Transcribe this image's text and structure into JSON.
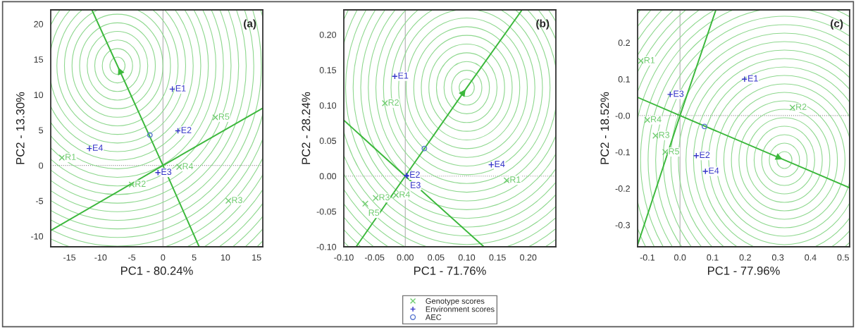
{
  "chart_data": [
    {
      "type": "scatter",
      "xlabel": "PC1 - 80.24%",
      "ylabel": "PC2 - 13.30%",
      "annotations": [
        "(a)"
      ],
      "xlim": [
        -18,
        16
      ],
      "ylim": [
        -11.5,
        22
      ],
      "xticks": [
        -15,
        -10,
        -5,
        0,
        5,
        10,
        15
      ],
      "yticks": [
        -10,
        -5,
        0,
        5,
        10,
        15,
        20
      ],
      "ref_lines": [
        {
          "axis": "x",
          "value": 0,
          "color": "#b0b0b0",
          "line_style": "solid"
        },
        {
          "axis": "y",
          "value": 0,
          "color": "#909090",
          "line_style": "dotted"
        }
      ],
      "series": [
        {
          "color": "#70cc70",
          "marker": "x",
          "x": [
            -16.2,
            -5,
            10.5,
            2.6,
            8.4
          ],
          "values": [
            1.1,
            -2.7,
            -5,
            -0.2,
            6.8
          ],
          "value_labels": [
            "R1",
            "R2",
            "R3",
            "R4",
            "R5"
          ]
        },
        {
          "color": "#3535c8",
          "marker": "cross",
          "x": [
            1.5,
            2.4,
            -0.8,
            -11.8
          ],
          "values": [
            10.8,
            4.9,
            -1,
            2.4
          ],
          "value_labels": [
            "E1",
            "E2",
            "E3",
            "E4"
          ]
        },
        {
          "color": "#5a78d0",
          "marker": "circle",
          "x": [
            -2.1
          ],
          "values": [
            4.3
          ]
        },
        {
          "type": "line",
          "color": "#3cb83c",
          "x": [
            5.8,
            0,
            -7.3,
            -11.4
          ],
          "values": [
            -11.5,
            0,
            14.1,
            22
          ]
        },
        {
          "type": "line",
          "color": "#3cb83c",
          "x": [
            -18,
            0,
            16
          ],
          "values": [
            -9.2,
            0,
            8.1
          ]
        }
      ]
    },
    {
      "type": "scatter",
      "xlabel": "PC1 - 71.76%",
      "ylabel": "PC2 - 28.24%",
      "annotations": [
        "(b)"
      ],
      "legend": "bottom",
      "xlim": [
        -0.1,
        0.245
      ],
      "ylim": [
        -0.1,
        0.235
      ],
      "xticks": [
        {
          "value": -0.1,
          "label": "-0.10"
        },
        {
          "value": -0.05,
          "label": "-0.05"
        },
        {
          "value": 0,
          "label": "0.00"
        },
        {
          "value": 0.05,
          "label": "0.05"
        },
        {
          "value": 0.1,
          "label": "0.10"
        },
        {
          "value": 0.15,
          "label": "0.15"
        },
        {
          "value": 0.2,
          "label": "0.20"
        }
      ],
      "yticks": [
        {
          "value": -0.1,
          "label": "-0.10"
        },
        {
          "value": -0.05,
          "label": "-0.05"
        },
        {
          "value": 0,
          "label": "0.00"
        },
        {
          "value": 0.05,
          "label": "0.05"
        },
        {
          "value": 0.1,
          "label": "0.10"
        },
        {
          "value": 0.15,
          "label": "0.15"
        },
        {
          "value": 0.2,
          "label": "0.20"
        }
      ],
      "ref_lines": [
        {
          "axis": "x",
          "value": 0,
          "color": "#b0b0b0",
          "line_style": "solid"
        },
        {
          "axis": "y",
          "value": 0,
          "color": "#909090",
          "line_style": "dotted"
        }
      ],
      "series": [
        {
          "name": "Genotype scores",
          "color": "#70cc70",
          "marker": "x",
          "x": [
            0.165,
            -0.033,
            -0.048,
            -0.015,
            -0.065
          ],
          "values": [
            -0.006,
            0.103,
            -0.031,
            -0.027,
            -0.039
          ],
          "value_labels": [
            "R1",
            "R2",
            "R3",
            "R4",
            "R5"
          ]
        },
        {
          "name": "Environment scores",
          "color": "#3535c8",
          "marker": "cross",
          "x": [
            -0.017,
            0.002,
            0.003,
            0.14
          ],
          "values": [
            0.141,
            0.001,
            0.0,
            0.016
          ],
          "value_labels": [
            "E1",
            "E2",
            "E3",
            "E4"
          ]
        },
        {
          "name": "AEC",
          "color": "#5a78d0",
          "marker": "circle",
          "x": [
            0.031
          ],
          "values": [
            0.039
          ]
        },
        {
          "type": "line",
          "color": "#3cb83c",
          "x": [
            -0.08,
            0,
            0.1,
            0.19
          ],
          "values": [
            -0.1,
            0,
            0.125,
            0.235
          ]
        },
        {
          "type": "line",
          "color": "#3cb83c",
          "x": [
            -0.1,
            0,
            0.128
          ],
          "values": [
            0.079,
            0,
            -0.1
          ]
        }
      ]
    },
    {
      "type": "scatter",
      "xlabel": "PC1 - 77.96%",
      "ylabel": "PC2 - 18.52%",
      "annotations": [
        "(c)"
      ],
      "xlim": [
        -0.13,
        0.52
      ],
      "ylim": [
        -0.36,
        0.29
      ],
      "xticks": [
        -0.1,
        {
          "value": 0,
          "label": "0.0"
        },
        0.1,
        0.2,
        0.3,
        0.4,
        0.5
      ],
      "yticks": [
        -0.3,
        -0.2,
        -0.1,
        {
          "value": 0,
          "label": "-0.0"
        },
        0.1,
        0.2
      ],
      "ref_lines": [
        {
          "axis": "x",
          "value": 0,
          "color": "#b0b0b0",
          "line_style": "solid"
        },
        {
          "axis": "y",
          "value": 0,
          "color": "#909090",
          "line_style": "dotted"
        }
      ],
      "series": [
        {
          "color": "#70cc70",
          "marker": "x",
          "x": [
            -0.12,
            0.345,
            -0.075,
            -0.1,
            -0.045
          ],
          "values": [
            0.15,
            0.022,
            -0.055,
            -0.012,
            -0.1
          ],
          "value_labels": [
            "R1",
            "R2",
            "R3",
            "R4",
            "R5"
          ]
        },
        {
          "color": "#3535c8",
          "marker": "cross",
          "x": [
            0.198,
            0.05,
            -0.03,
            0.078
          ],
          "values": [
            0.1,
            -0.11,
            0.058,
            -0.153
          ],
          "value_labels": [
            "E1",
            "E2",
            "E3",
            "E4"
          ]
        },
        {
          "color": "#5a78d0",
          "marker": "circle",
          "x": [
            0.075
          ],
          "values": [
            -0.03
          ]
        },
        {
          "type": "line",
          "color": "#3cb83c",
          "x": [
            -0.13,
            0,
            0.32,
            0.52
          ],
          "values": [
            0.05,
            0,
            -0.122,
            -0.198
          ]
        },
        {
          "type": "line",
          "color": "#3cb83c",
          "x": [
            -0.13,
            0,
            0.11
          ],
          "values": [
            -0.355,
            0,
            0.29
          ]
        }
      ]
    }
  ]
}
